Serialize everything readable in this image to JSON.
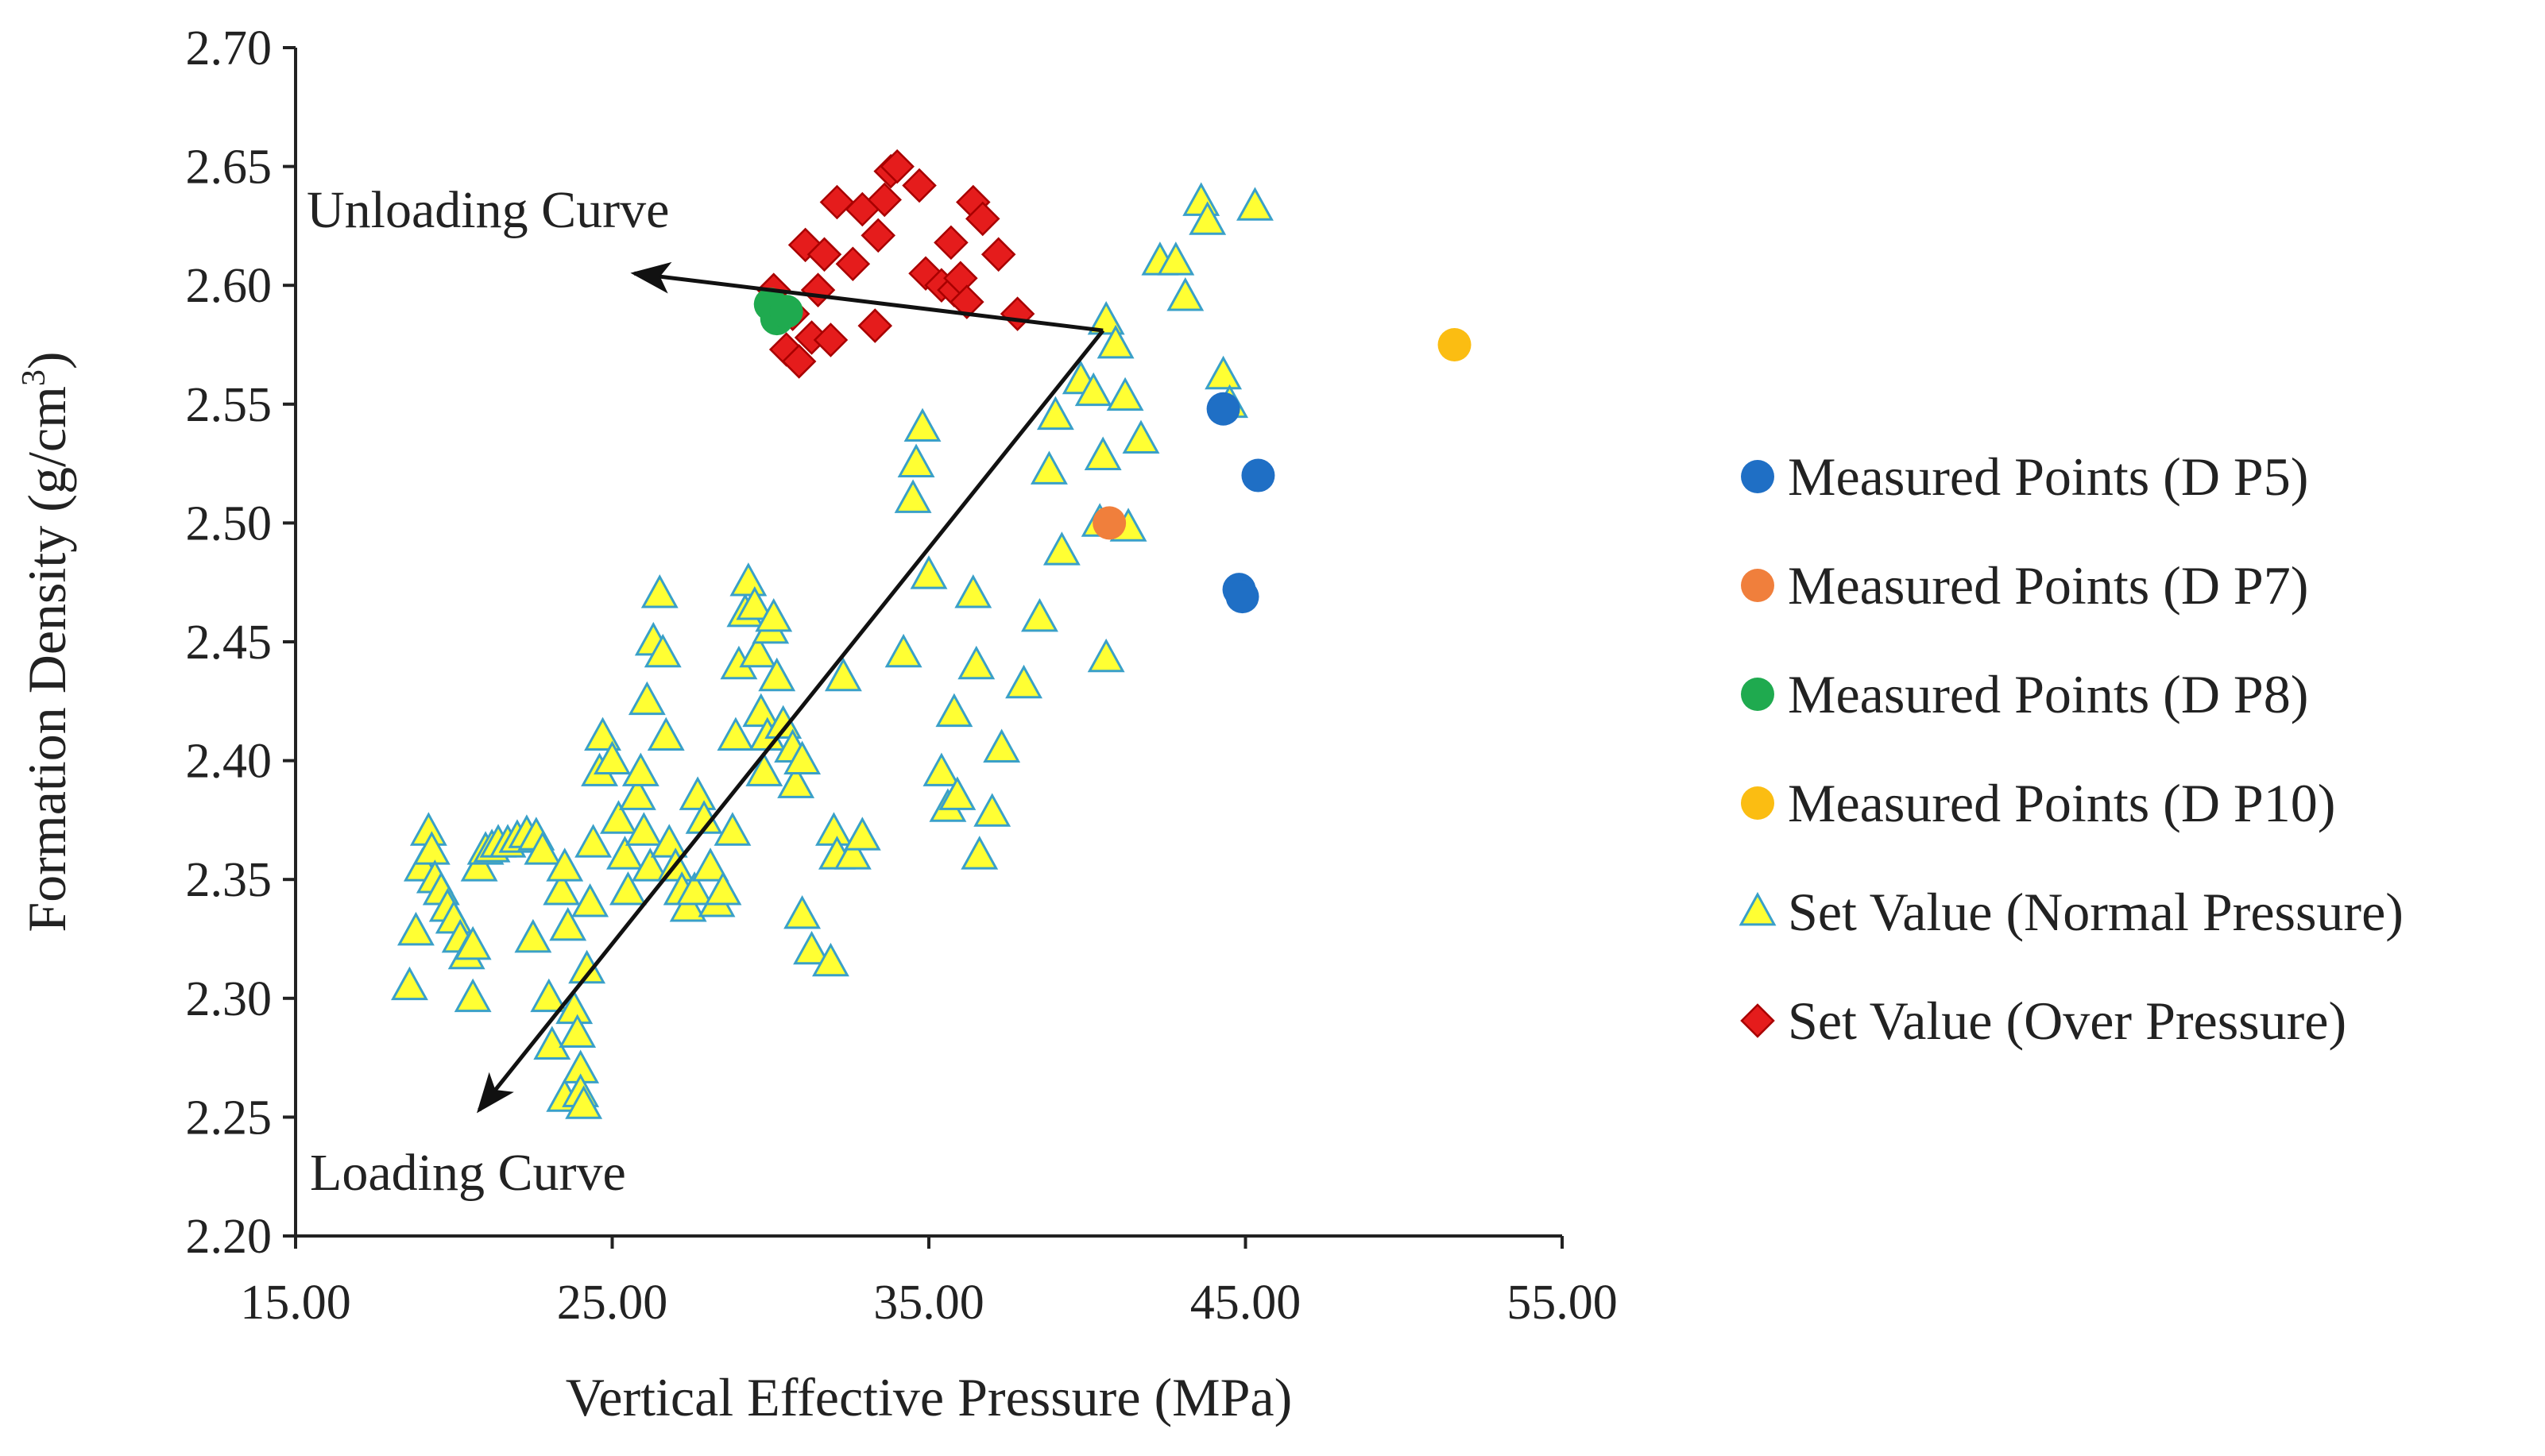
{
  "chart_data": {
    "type": "scatter",
    "xlabel": "Vertical Effective Pressure  (MPa)",
    "ylabel_main": "Formation Density (g/cm",
    "ylabel_sup": "3",
    "ylabel_close": ")",
    "xlim": [
      15,
      55
    ],
    "ylim": [
      2.2,
      2.7
    ],
    "x_ticks": [
      "15.00",
      "25.00",
      "35.00",
      "45.00",
      "55.00"
    ],
    "y_ticks": [
      "2.20",
      "2.25",
      "2.30",
      "2.35",
      "2.40",
      "2.45",
      "2.50",
      "2.55",
      "2.60",
      "2.65",
      "2.70"
    ],
    "grid": false,
    "legend_position": "right",
    "annotations": {
      "unloading": "Unloading Curve",
      "loading": "Loading Curve"
    },
    "arrows": {
      "vertex": [
        40.5,
        2.581
      ],
      "unloading_end": [
        25.7,
        2.605
      ],
      "loading_end": [
        20.8,
        2.253
      ]
    },
    "series": [
      {
        "name": "Measured Points (D P5)",
        "marker": "circle",
        "color": "#1f6fc5",
        "points": [
          [
            44.3,
            2.548
          ],
          [
            45.4,
            2.52
          ],
          [
            44.8,
            2.472
          ],
          [
            44.9,
            2.469
          ]
        ]
      },
      {
        "name": "Measured Points (D P7)",
        "marker": "circle",
        "color": "#f07f3c",
        "points": [
          [
            40.7,
            2.5
          ]
        ]
      },
      {
        "name": "Measured Points (D P8)",
        "marker": "circle",
        "color": "#1faa4f",
        "points": [
          [
            30.0,
            2.592
          ],
          [
            30.2,
            2.586
          ],
          [
            30.5,
            2.589
          ]
        ]
      },
      {
        "name": "Measured Points (D P10)",
        "marker": "circle",
        "color": "#fbbd12",
        "points": [
          [
            51.6,
            2.575
          ]
        ]
      },
      {
        "name": "Set Value (Normal Pressure)",
        "marker": "triangle",
        "color": "#ffff33",
        "edge_color": "#3aa0c8",
        "points": [
          [
            18.6,
            2.305
          ],
          [
            18.8,
            2.328
          ],
          [
            19.0,
            2.355
          ],
          [
            19.2,
            2.37
          ],
          [
            19.3,
            2.362
          ],
          [
            19.4,
            2.35
          ],
          [
            19.6,
            2.345
          ],
          [
            19.8,
            2.338
          ],
          [
            20.0,
            2.333
          ],
          [
            20.2,
            2.325
          ],
          [
            20.4,
            2.318
          ],
          [
            20.6,
            2.322
          ],
          [
            20.6,
            2.3
          ],
          [
            20.8,
            2.355
          ],
          [
            21.0,
            2.362
          ],
          [
            21.2,
            2.363
          ],
          [
            21.4,
            2.365
          ],
          [
            21.7,
            2.365
          ],
          [
            22.0,
            2.367
          ],
          [
            22.3,
            2.369
          ],
          [
            22.6,
            2.368
          ],
          [
            22.8,
            2.362
          ],
          [
            22.5,
            2.325
          ],
          [
            23.0,
            2.3
          ],
          [
            23.1,
            2.28
          ],
          [
            23.4,
            2.345
          ],
          [
            23.5,
            2.355
          ],
          [
            23.6,
            2.33
          ],
          [
            23.5,
            2.258
          ],
          [
            23.8,
            2.295
          ],
          [
            23.9,
            2.285
          ],
          [
            24.0,
            2.27
          ],
          [
            24.0,
            2.26
          ],
          [
            24.1,
            2.255
          ],
          [
            24.2,
            2.312
          ],
          [
            24.3,
            2.34
          ],
          [
            24.4,
            2.365
          ],
          [
            24.6,
            2.395
          ],
          [
            24.7,
            2.41
          ],
          [
            25.0,
            2.4
          ],
          [
            25.2,
            2.375
          ],
          [
            25.4,
            2.36
          ],
          [
            25.5,
            2.345
          ],
          [
            25.8,
            2.385
          ],
          [
            25.9,
            2.395
          ],
          [
            26.0,
            2.37
          ],
          [
            26.1,
            2.425
          ],
          [
            26.2,
            2.355
          ],
          [
            26.3,
            2.45
          ],
          [
            26.5,
            2.47
          ],
          [
            26.6,
            2.445
          ],
          [
            26.7,
            2.41
          ],
          [
            26.8,
            2.365
          ],
          [
            27.0,
            2.355
          ],
          [
            27.2,
            2.345
          ],
          [
            27.4,
            2.338
          ],
          [
            27.6,
            2.345
          ],
          [
            27.7,
            2.385
          ],
          [
            27.9,
            2.375
          ],
          [
            28.1,
            2.355
          ],
          [
            28.3,
            2.34
          ],
          [
            28.5,
            2.345
          ],
          [
            28.8,
            2.37
          ],
          [
            28.9,
            2.41
          ],
          [
            29.0,
            2.44
          ],
          [
            29.2,
            2.462
          ],
          [
            29.3,
            2.475
          ],
          [
            29.5,
            2.465
          ],
          [
            29.6,
            2.445
          ],
          [
            29.7,
            2.42
          ],
          [
            29.8,
            2.395
          ],
          [
            29.9,
            2.41
          ],
          [
            30.0,
            2.455
          ],
          [
            30.1,
            2.46
          ],
          [
            30.2,
            2.435
          ],
          [
            30.4,
            2.415
          ],
          [
            30.7,
            2.405
          ],
          [
            30.8,
            2.39
          ],
          [
            31.0,
            2.4
          ],
          [
            31.0,
            2.335
          ],
          [
            31.3,
            2.32
          ],
          [
            31.9,
            2.315
          ],
          [
            32.0,
            2.37
          ],
          [
            32.1,
            2.36
          ],
          [
            32.3,
            2.435
          ],
          [
            32.6,
            2.36
          ],
          [
            32.9,
            2.368
          ],
          [
            34.2,
            2.445
          ],
          [
            34.5,
            2.51
          ],
          [
            34.6,
            2.525
          ],
          [
            34.8,
            2.54
          ],
          [
            35.0,
            2.478
          ],
          [
            35.4,
            2.395
          ],
          [
            35.6,
            2.38
          ],
          [
            35.8,
            2.42
          ],
          [
            35.9,
            2.385
          ],
          [
            36.4,
            2.47
          ],
          [
            36.5,
            2.44
          ],
          [
            36.6,
            2.36
          ],
          [
            37.0,
            2.378
          ],
          [
            37.3,
            2.405
          ],
          [
            38.0,
            2.432
          ],
          [
            38.5,
            2.46
          ],
          [
            38.8,
            2.522
          ],
          [
            39.0,
            2.545
          ],
          [
            39.2,
            2.488
          ],
          [
            39.8,
            2.56
          ],
          [
            40.2,
            2.555
          ],
          [
            40.4,
            2.5
          ],
          [
            40.5,
            2.528
          ],
          [
            40.6,
            2.585
          ],
          [
            40.6,
            2.443
          ],
          [
            40.9,
            2.575
          ],
          [
            41.2,
            2.553
          ],
          [
            41.3,
            2.498
          ],
          [
            41.7,
            2.535
          ],
          [
            42.3,
            2.61
          ],
          [
            42.8,
            2.61
          ],
          [
            43.1,
            2.595
          ],
          [
            43.6,
            2.635
          ],
          [
            43.8,
            2.627
          ],
          [
            44.3,
            2.562
          ],
          [
            44.5,
            2.55
          ],
          [
            45.3,
            2.633
          ]
        ]
      },
      {
        "name": "Set Value (Over Pressure)",
        "marker": "diamond",
        "color": "#e51c1c",
        "edge_color": "#a80000",
        "points": [
          [
            30.1,
            2.598
          ],
          [
            30.4,
            2.59
          ],
          [
            30.5,
            2.573
          ],
          [
            30.7,
            2.588
          ],
          [
            30.9,
            2.568
          ],
          [
            31.1,
            2.617
          ],
          [
            31.3,
            2.578
          ],
          [
            31.5,
            2.598
          ],
          [
            31.7,
            2.613
          ],
          [
            31.9,
            2.577
          ],
          [
            32.1,
            2.635
          ],
          [
            32.6,
            2.609
          ],
          [
            32.9,
            2.632
          ],
          [
            33.3,
            2.583
          ],
          [
            33.4,
            2.621
          ],
          [
            33.6,
            2.636
          ],
          [
            33.8,
            2.648
          ],
          [
            34.0,
            2.65
          ],
          [
            34.7,
            2.642
          ],
          [
            34.9,
            2.605
          ],
          [
            35.4,
            2.6
          ],
          [
            35.7,
            2.618
          ],
          [
            35.8,
            2.598
          ],
          [
            36.0,
            2.603
          ],
          [
            36.2,
            2.593
          ],
          [
            36.4,
            2.635
          ],
          [
            36.7,
            2.628
          ],
          [
            37.2,
            2.613
          ],
          [
            37.8,
            2.588
          ]
        ]
      }
    ]
  }
}
